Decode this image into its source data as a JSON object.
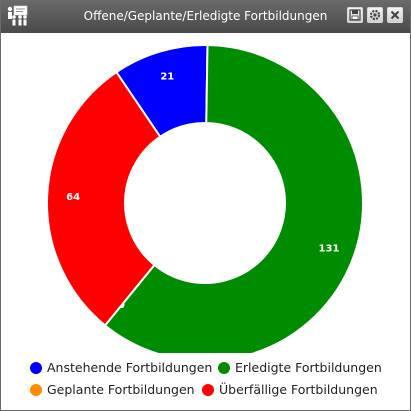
{
  "window": {
    "title": "Offene/Geplante/Erledigte Fortbildungen",
    "icons": [
      "people-presentation-icon",
      "save-icon",
      "settings-icon",
      "close-icon"
    ]
  },
  "chart_data": {
    "type": "pie",
    "donut": true,
    "title": "",
    "slices": [
      {
        "label": "Anstehende Fortbildungen",
        "value": 21,
        "color": "#0000ff"
      },
      {
        "label": "Erledigte Fortbildungen",
        "value": 131,
        "color": "#008c00"
      },
      {
        "label": "Geplante Fortbildungen",
        "value": 0,
        "color": "#ff8c00"
      },
      {
        "label": "Überfällige Fortbildungen",
        "value": 64,
        "color": "#ff0000"
      }
    ],
    "legend_position": "bottom"
  }
}
